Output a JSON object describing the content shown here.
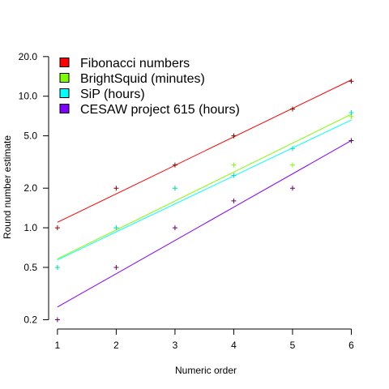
{
  "chart_data": {
    "type": "scatter",
    "title": "",
    "xlabel": "Numeric order",
    "ylabel": "Round number estimate",
    "xlim": [
      0.85,
      6.2
    ],
    "ylim": [
      0.17,
      24
    ],
    "y_scale": "log",
    "xticks": [
      1,
      2,
      3,
      4,
      5,
      6
    ],
    "xtick_labels": [
      "1",
      "2",
      "3",
      "4",
      "5",
      "6"
    ],
    "yticks": [
      0.2,
      0.5,
      1.0,
      2.0,
      5.0,
      10.0,
      20.0
    ],
    "ytick_labels": [
      "0.2",
      "0.5",
      "1.0",
      "2.0",
      "5.0",
      "10.0",
      "20.0"
    ],
    "grid": false,
    "legend_position": "top-left",
    "marker": "+",
    "series": [
      {
        "name": "Fibonacci numbers",
        "color": "#ff0000",
        "point_color": "#8b0000",
        "x": [
          1,
          2,
          3,
          4,
          5,
          6
        ],
        "values": [
          1,
          2,
          3,
          5,
          8,
          13
        ],
        "fit": [
          1.1,
          13.3
        ]
      },
      {
        "name": "BrightSquid (minutes)",
        "color": "#80ff00",
        "point_color": "#80ff00",
        "x": [
          1,
          2,
          3,
          4,
          5,
          6
        ],
        "values": [
          0.5,
          1,
          2,
          3,
          3,
          7
        ],
        "fit": [
          0.58,
          7.3
        ]
      },
      {
        "name": "SiP (hours)",
        "color": "#00ffff",
        "point_color": "#00e0c0",
        "x": [
          1,
          2,
          3,
          4,
          5,
          6
        ],
        "values": [
          0.5,
          1,
          2,
          2.5,
          4,
          7.5
        ],
        "fit": [
          0.57,
          6.6
        ]
      },
      {
        "name": "CESAW project 615 (hours)",
        "color": "#8000ff",
        "point_color": "#660066",
        "x": [
          1,
          2,
          3,
          4,
          5,
          6
        ],
        "values": [
          0.2,
          0.5,
          1,
          1.6,
          2,
          4.6
        ],
        "fit": [
          0.25,
          4.6
        ]
      }
    ]
  }
}
